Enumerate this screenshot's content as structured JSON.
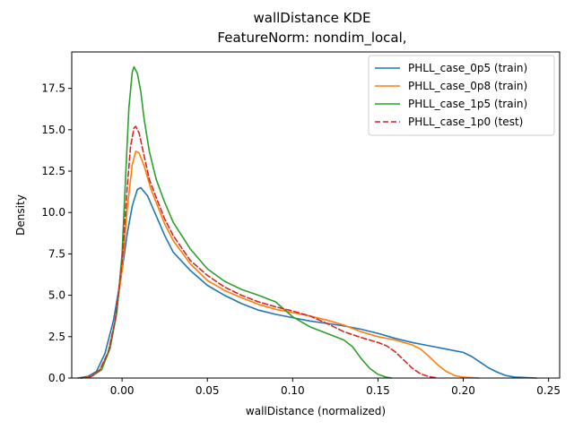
{
  "chart_data": {
    "type": "line",
    "title": "wallDistance KDE",
    "subtitle": "FeatureNorm: nondim_local,",
    "xlabel": "wallDistance (normalized)",
    "ylabel": "Density",
    "xlim": [
      -0.0295,
      0.2565
    ],
    "ylim": [
      0,
      19.7
    ],
    "xticks": [
      0.0,
      0.05,
      0.1,
      0.15,
      0.2,
      0.25
    ],
    "xtick_labels": [
      "0.00",
      "0.05",
      "0.10",
      "0.15",
      "0.20",
      "0.25"
    ],
    "yticks": [
      0.0,
      2.5,
      5.0,
      7.5,
      10.0,
      12.5,
      15.0,
      17.5
    ],
    "ytick_labels": [
      "0.0",
      "2.5",
      "5.0",
      "7.5",
      "10.0",
      "12.5",
      "15.0",
      "17.5"
    ],
    "grid": false,
    "legend_position": "top-right",
    "series": [
      {
        "name": "PHLL_case_0p5 (train)",
        "color": "#1f77b4",
        "dash": "solid",
        "points": [
          [
            -0.026,
            0.0
          ],
          [
            -0.02,
            0.1
          ],
          [
            -0.015,
            0.4
          ],
          [
            -0.01,
            1.5
          ],
          [
            -0.005,
            3.5
          ],
          [
            0.0,
            6.5
          ],
          [
            0.003,
            8.7
          ],
          [
            0.006,
            10.4
          ],
          [
            0.009,
            11.4
          ],
          [
            0.011,
            11.5
          ],
          [
            0.015,
            11.0
          ],
          [
            0.02,
            9.8
          ],
          [
            0.025,
            8.6
          ],
          [
            0.03,
            7.6
          ],
          [
            0.04,
            6.5
          ],
          [
            0.05,
            5.6
          ],
          [
            0.06,
            5.0
          ],
          [
            0.07,
            4.5
          ],
          [
            0.08,
            4.1
          ],
          [
            0.09,
            3.85
          ],
          [
            0.1,
            3.65
          ],
          [
            0.11,
            3.45
          ],
          [
            0.12,
            3.3
          ],
          [
            0.13,
            3.15
          ],
          [
            0.14,
            2.95
          ],
          [
            0.15,
            2.7
          ],
          [
            0.16,
            2.4
          ],
          [
            0.17,
            2.15
          ],
          [
            0.18,
            1.95
          ],
          [
            0.19,
            1.75
          ],
          [
            0.2,
            1.55
          ],
          [
            0.205,
            1.3
          ],
          [
            0.21,
            0.95
          ],
          [
            0.215,
            0.6
          ],
          [
            0.22,
            0.35
          ],
          [
            0.225,
            0.15
          ],
          [
            0.23,
            0.06
          ],
          [
            0.237,
            0.02
          ],
          [
            0.243,
            0.0
          ]
        ]
      },
      {
        "name": "PHLL_case_0p8 (train)",
        "color": "#ff7f0e",
        "dash": "solid",
        "points": [
          [
            -0.024,
            0.0
          ],
          [
            -0.018,
            0.1
          ],
          [
            -0.013,
            0.5
          ],
          [
            -0.008,
            1.6
          ],
          [
            -0.004,
            3.5
          ],
          [
            0.0,
            6.5
          ],
          [
            0.003,
            10.2
          ],
          [
            0.006,
            12.9
          ],
          [
            0.008,
            13.7
          ],
          [
            0.01,
            13.6
          ],
          [
            0.013,
            12.8
          ],
          [
            0.017,
            11.4
          ],
          [
            0.02,
            10.6
          ],
          [
            0.025,
            9.3
          ],
          [
            0.03,
            8.3
          ],
          [
            0.04,
            6.9
          ],
          [
            0.05,
            5.9
          ],
          [
            0.06,
            5.3
          ],
          [
            0.07,
            4.85
          ],
          [
            0.08,
            4.45
          ],
          [
            0.09,
            4.15
          ],
          [
            0.1,
            3.95
          ],
          [
            0.11,
            3.75
          ],
          [
            0.12,
            3.5
          ],
          [
            0.13,
            3.2
          ],
          [
            0.14,
            2.8
          ],
          [
            0.15,
            2.5
          ],
          [
            0.16,
            2.3
          ],
          [
            0.17,
            2.0
          ],
          [
            0.175,
            1.75
          ],
          [
            0.18,
            1.3
          ],
          [
            0.185,
            0.8
          ],
          [
            0.19,
            0.4
          ],
          [
            0.195,
            0.15
          ],
          [
            0.2,
            0.05
          ],
          [
            0.205,
            0.02
          ],
          [
            0.209,
            0.0
          ]
        ]
      },
      {
        "name": "PHLL_case_1p5 (train)",
        "color": "#2ca02c",
        "dash": "solid",
        "points": [
          [
            -0.024,
            0.0
          ],
          [
            -0.018,
            0.1
          ],
          [
            -0.012,
            0.5
          ],
          [
            -0.007,
            1.8
          ],
          [
            -0.003,
            4.0
          ],
          [
            0.0,
            7.5
          ],
          [
            0.002,
            12.0
          ],
          [
            0.004,
            16.3
          ],
          [
            0.006,
            18.5
          ],
          [
            0.007,
            18.8
          ],
          [
            0.009,
            18.4
          ],
          [
            0.011,
            17.3
          ],
          [
            0.013,
            15.6
          ],
          [
            0.016,
            13.7
          ],
          [
            0.02,
            12.0
          ],
          [
            0.025,
            10.6
          ],
          [
            0.03,
            9.4
          ],
          [
            0.04,
            7.8
          ],
          [
            0.05,
            6.6
          ],
          [
            0.06,
            5.85
          ],
          [
            0.07,
            5.35
          ],
          [
            0.08,
            5.0
          ],
          [
            0.09,
            4.6
          ],
          [
            0.1,
            3.7
          ],
          [
            0.11,
            3.1
          ],
          [
            0.12,
            2.7
          ],
          [
            0.13,
            2.3
          ],
          [
            0.135,
            1.9
          ],
          [
            0.14,
            1.2
          ],
          [
            0.145,
            0.6
          ],
          [
            0.15,
            0.22
          ],
          [
            0.155,
            0.05
          ],
          [
            0.158,
            0.0
          ]
        ]
      },
      {
        "name": "PHLL_case_1p0 (test)",
        "color": "#d62728",
        "dash": "dashed",
        "points": [
          [
            -0.024,
            0.0
          ],
          [
            -0.018,
            0.1
          ],
          [
            -0.013,
            0.5
          ],
          [
            -0.008,
            1.6
          ],
          [
            -0.004,
            3.5
          ],
          [
            0.0,
            7.0
          ],
          [
            0.003,
            11.5
          ],
          [
            0.005,
            14.0
          ],
          [
            0.007,
            15.1
          ],
          [
            0.008,
            15.2
          ],
          [
            0.01,
            14.8
          ],
          [
            0.013,
            13.4
          ],
          [
            0.016,
            12.0
          ],
          [
            0.02,
            10.9
          ],
          [
            0.025,
            9.6
          ],
          [
            0.03,
            8.6
          ],
          [
            0.04,
            7.1
          ],
          [
            0.05,
            6.2
          ],
          [
            0.06,
            5.5
          ],
          [
            0.07,
            5.0
          ],
          [
            0.08,
            4.6
          ],
          [
            0.09,
            4.3
          ],
          [
            0.1,
            4.05
          ],
          [
            0.11,
            3.75
          ],
          [
            0.12,
            3.3
          ],
          [
            0.13,
            2.8
          ],
          [
            0.14,
            2.45
          ],
          [
            0.15,
            2.15
          ],
          [
            0.155,
            1.95
          ],
          [
            0.16,
            1.6
          ],
          [
            0.165,
            1.1
          ],
          [
            0.17,
            0.6
          ],
          [
            0.175,
            0.25
          ],
          [
            0.18,
            0.08
          ],
          [
            0.185,
            0.0
          ]
        ]
      }
    ]
  }
}
